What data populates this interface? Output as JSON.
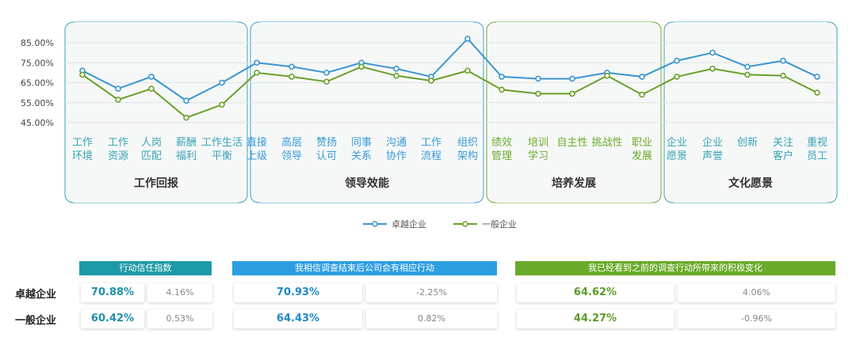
{
  "chart_data": {
    "type": "line",
    "y_ticks": [
      "85.00%",
      "75.00%",
      "65.00%",
      "55.00%",
      "45.00%"
    ],
    "ylim": [
      45,
      85
    ],
    "categories": [
      [
        "工作",
        "环境"
      ],
      [
        "工作",
        "资源"
      ],
      [
        "人岗",
        "匹配"
      ],
      [
        "薪酬",
        "福利"
      ],
      [
        "工作生活",
        "平衡"
      ],
      [
        "直接",
        "上级"
      ],
      [
        "高层",
        "领导"
      ],
      [
        "赞扬",
        "认可"
      ],
      [
        "同事",
        "关系"
      ],
      [
        "沟通",
        "协作"
      ],
      [
        "工作",
        "流程"
      ],
      [
        "组织",
        "架构"
      ],
      [
        "绩效",
        "管理"
      ],
      [
        "培训",
        "学习"
      ],
      [
        "自主性"
      ],
      [
        "挑战性"
      ],
      [
        "职业",
        "发展"
      ],
      [
        "企业",
        "愿景"
      ],
      [
        "企业",
        "声誉"
      ],
      [
        "创新"
      ],
      [
        "关注",
        "客户"
      ],
      [
        "重视",
        "员工"
      ]
    ],
    "groups": [
      {
        "name": "工作回报",
        "count": 5,
        "color": "#3aa3b3"
      },
      {
        "name": "领导效能",
        "count": 7,
        "color": "#3a9ad6"
      },
      {
        "name": "培养发展",
        "count": 5,
        "color": "#6aaa2a"
      },
      {
        "name": "文化愿景",
        "count": 5,
        "color": "#3aa3b3"
      }
    ],
    "series": [
      {
        "name": "卓越企业",
        "color": "#3a95d0",
        "values": [
          71,
          62,
          68,
          56,
          65,
          75,
          73,
          70,
          75,
          72,
          68,
          87,
          68,
          67,
          67,
          70,
          68,
          76,
          80,
          73,
          76,
          68
        ]
      },
      {
        "name": "一般企业",
        "color": "#6aa02a",
        "values": [
          69,
          56.5,
          62,
          47.5,
          54,
          70,
          68,
          65.5,
          73,
          68.5,
          66,
          71,
          61.5,
          59.5,
          59.5,
          68.5,
          59,
          68,
          72,
          69,
          68.5,
          60
        ]
      }
    ],
    "legend": "bottom-center"
  },
  "table": {
    "row_labels": [
      "卓越企业",
      "一般企业"
    ],
    "headers": [
      "行动信任指数",
      "我相信调查结束后公司会有相应行动",
      "我已经看到之前的调查行动所带来的积极变化"
    ],
    "header_colors": [
      "#1e9aa6",
      "#2c9ee0",
      "#6aaa2a"
    ],
    "rows": [
      [
        "70.88%",
        "4.16%",
        "70.93%",
        "-2.25%",
        "64.62%",
        "4.06%"
      ],
      [
        "60.42%",
        "0.53%",
        "64.43%",
        "0.82%",
        "44.27%",
        "-0.96%"
      ]
    ]
  }
}
